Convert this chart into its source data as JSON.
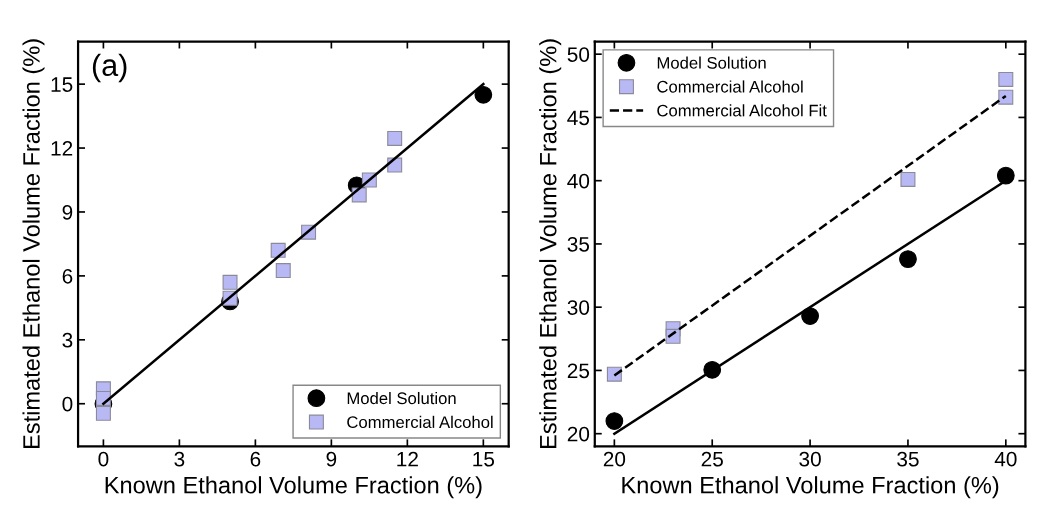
{
  "chart_data": [
    {
      "type": "scatter",
      "xlabel": "Known Ethanol Volume Fraction (%)",
      "ylabel": "Estimated Ethanol Volume Fraction (%)",
      "annotations": [
        "(a)"
      ],
      "xlim": [
        -1,
        16
      ],
      "ylim": [
        -2,
        17
      ],
      "xticks": [
        0,
        3,
        6,
        9,
        12,
        15
      ],
      "yticks": [
        0,
        3,
        6,
        9,
        12,
        15
      ],
      "legend": "bottom right",
      "grid": false,
      "series": [
        {
          "type": "line",
          "color": "#000000",
          "line_style": "solid",
          "marker": "none",
          "x": [
            0,
            15
          ],
          "values": [
            0,
            15
          ]
        },
        {
          "name": "Model Solution",
          "color": "#000000",
          "marker": "circle",
          "x": [
            0,
            5,
            10,
            15
          ],
          "values": [
            0,
            4.8,
            10.25,
            14.5
          ]
        },
        {
          "name": "Commercial Alcohol",
          "color": "#b8b8f4",
          "marker": "square",
          "x": [
            0,
            0,
            0,
            5,
            5,
            6.9,
            7.1,
            8.1,
            10.1,
            10.5,
            11.5,
            11.5
          ],
          "values": [
            0.7,
            0.25,
            -0.45,
            5.7,
            4.95,
            7.2,
            6.25,
            8.05,
            9.8,
            10.5,
            12.45,
            11.2
          ]
        }
      ]
    },
    {
      "type": "scatter",
      "xlabel": "Known Ethanol Volume Fraction (%)",
      "ylabel": "Estimated Ethanol Volume Fraction (%)",
      "xlim": [
        19,
        41
      ],
      "ylim": [
        19,
        51
      ],
      "xticks": [
        20,
        25,
        30,
        35,
        40
      ],
      "yticks": [
        20,
        25,
        30,
        35,
        40,
        45,
        50
      ],
      "legend": "top left",
      "grid": false,
      "series": [
        {
          "name": "Model Solution",
          "color": "#000000",
          "marker": "circle",
          "x": [
            20,
            25,
            30,
            35,
            40
          ],
          "values": [
            21,
            25.05,
            29.3,
            33.8,
            40.4
          ]
        },
        {
          "name": "Commercial Alcohol",
          "color": "#b8b8f4",
          "marker": "square",
          "x": [
            20,
            23,
            23,
            35,
            40,
            40
          ],
          "values": [
            24.7,
            28.3,
            27.7,
            40.1,
            48,
            46.6
          ]
        },
        {
          "name": "Commercial Alcohol Fit",
          "type": "line",
          "color": "#000000",
          "line_style": "dashed",
          "marker": "none",
          "x": [
            20,
            40
          ],
          "values": [
            24.6,
            46.7
          ]
        },
        {
          "type": "line",
          "color": "#000000",
          "line_style": "solid",
          "marker": "none",
          "x": [
            20,
            40
          ],
          "values": [
            20,
            40
          ]
        }
      ]
    }
  ]
}
